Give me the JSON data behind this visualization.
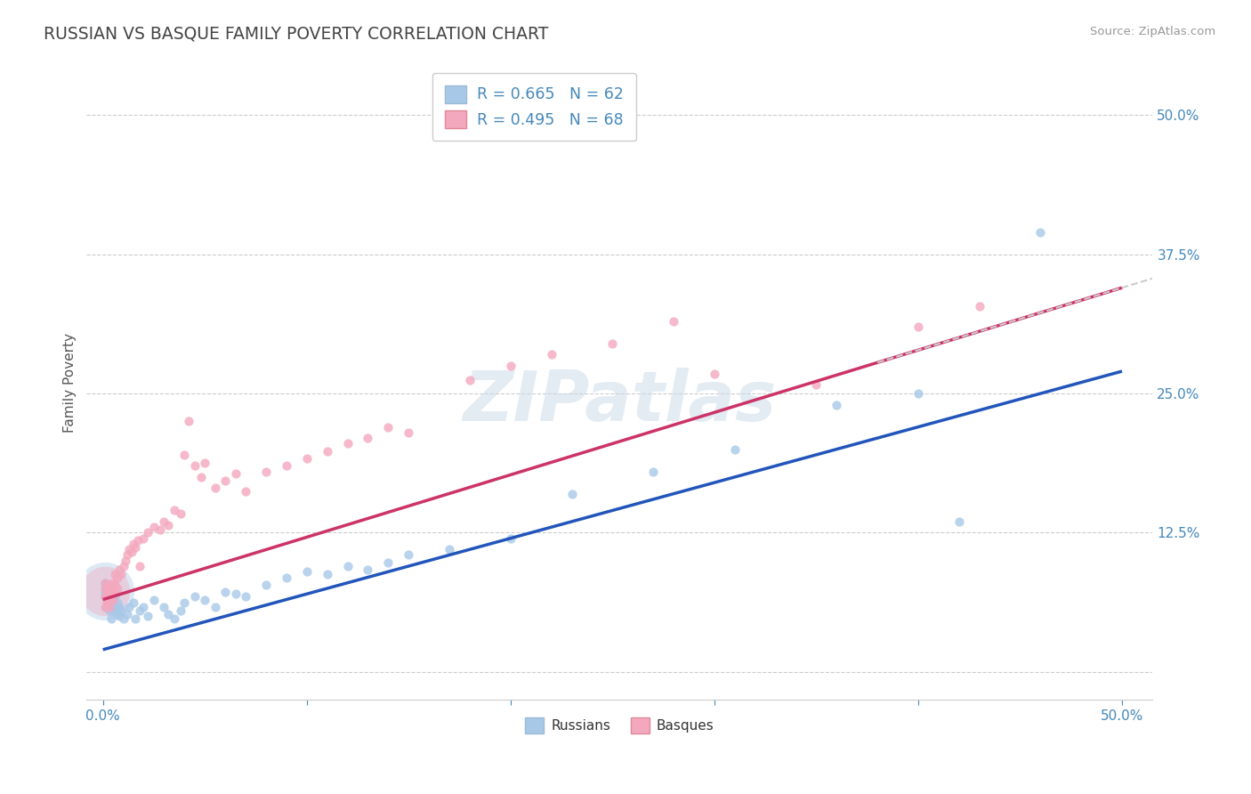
{
  "title": "RUSSIAN VS BASQUE FAMILY POVERTY CORRELATION CHART",
  "source": "Source: ZipAtlas.com",
  "ylabel": "Family Poverty",
  "russian_color": "#a8c8e8",
  "basque_color": "#f4a8be",
  "russian_line_color": "#2255bb",
  "basque_line_color": "#cc3366",
  "axis_label_color": "#4488bb",
  "title_color": "#444444",
  "grid_color": "#cccccc",
  "background_color": "#ffffff",
  "watermark": "ZIPatlas",
  "russian_R": 0.665,
  "russian_N": 62,
  "basque_R": 0.495,
  "basque_N": 68,
  "russian_line": [
    0.0,
    0.02,
    0.5,
    0.27
  ],
  "basque_line": [
    0.0,
    0.065,
    0.5,
    0.345
  ],
  "russian_points": [
    [
      0.001,
      0.068
    ],
    [
      0.001,
      0.075
    ],
    [
      0.001,
      0.08
    ],
    [
      0.001,
      0.072
    ],
    [
      0.002,
      0.065
    ],
    [
      0.002,
      0.078
    ],
    [
      0.002,
      0.07
    ],
    [
      0.002,
      0.058
    ],
    [
      0.003,
      0.068
    ],
    [
      0.003,
      0.062
    ],
    [
      0.003,
      0.055
    ],
    [
      0.003,
      0.075
    ],
    [
      0.004,
      0.06
    ],
    [
      0.004,
      0.07
    ],
    [
      0.004,
      0.048
    ],
    [
      0.005,
      0.058
    ],
    [
      0.005,
      0.065
    ],
    [
      0.005,
      0.072
    ],
    [
      0.006,
      0.055
    ],
    [
      0.006,
      0.068
    ],
    [
      0.007,
      0.052
    ],
    [
      0.007,
      0.062
    ],
    [
      0.008,
      0.05
    ],
    [
      0.008,
      0.058
    ],
    [
      0.009,
      0.055
    ],
    [
      0.01,
      0.048
    ],
    [
      0.012,
      0.052
    ],
    [
      0.013,
      0.058
    ],
    [
      0.015,
      0.062
    ],
    [
      0.016,
      0.048
    ],
    [
      0.018,
      0.055
    ],
    [
      0.02,
      0.058
    ],
    [
      0.022,
      0.05
    ],
    [
      0.025,
      0.065
    ],
    [
      0.03,
      0.058
    ],
    [
      0.032,
      0.052
    ],
    [
      0.035,
      0.048
    ],
    [
      0.038,
      0.055
    ],
    [
      0.04,
      0.062
    ],
    [
      0.045,
      0.068
    ],
    [
      0.05,
      0.065
    ],
    [
      0.055,
      0.058
    ],
    [
      0.06,
      0.072
    ],
    [
      0.065,
      0.07
    ],
    [
      0.07,
      0.068
    ],
    [
      0.08,
      0.078
    ],
    [
      0.09,
      0.085
    ],
    [
      0.1,
      0.09
    ],
    [
      0.11,
      0.088
    ],
    [
      0.12,
      0.095
    ],
    [
      0.13,
      0.092
    ],
    [
      0.14,
      0.098
    ],
    [
      0.15,
      0.105
    ],
    [
      0.17,
      0.11
    ],
    [
      0.2,
      0.12
    ],
    [
      0.23,
      0.16
    ],
    [
      0.27,
      0.18
    ],
    [
      0.31,
      0.2
    ],
    [
      0.36,
      0.24
    ],
    [
      0.4,
      0.25
    ],
    [
      0.42,
      0.135
    ],
    [
      0.46,
      0.395
    ]
  ],
  "basque_points": [
    [
      0.001,
      0.068
    ],
    [
      0.001,
      0.075
    ],
    [
      0.001,
      0.08
    ],
    [
      0.001,
      0.058
    ],
    [
      0.002,
      0.065
    ],
    [
      0.002,
      0.072
    ],
    [
      0.002,
      0.068
    ],
    [
      0.002,
      0.062
    ],
    [
      0.003,
      0.078
    ],
    [
      0.003,
      0.07
    ],
    [
      0.003,
      0.065
    ],
    [
      0.003,
      0.058
    ],
    [
      0.004,
      0.075
    ],
    [
      0.004,
      0.068
    ],
    [
      0.004,
      0.072
    ],
    [
      0.005,
      0.08
    ],
    [
      0.005,
      0.07
    ],
    [
      0.005,
      0.065
    ],
    [
      0.006,
      0.088
    ],
    [
      0.006,
      0.078
    ],
    [
      0.006,
      0.072
    ],
    [
      0.007,
      0.085
    ],
    [
      0.007,
      0.075
    ],
    [
      0.008,
      0.092
    ],
    [
      0.009,
      0.088
    ],
    [
      0.01,
      0.095
    ],
    [
      0.011,
      0.1
    ],
    [
      0.012,
      0.105
    ],
    [
      0.013,
      0.11
    ],
    [
      0.014,
      0.108
    ],
    [
      0.015,
      0.115
    ],
    [
      0.016,
      0.112
    ],
    [
      0.017,
      0.118
    ],
    [
      0.018,
      0.095
    ],
    [
      0.02,
      0.12
    ],
    [
      0.022,
      0.125
    ],
    [
      0.025,
      0.13
    ],
    [
      0.028,
      0.128
    ],
    [
      0.03,
      0.135
    ],
    [
      0.032,
      0.132
    ],
    [
      0.035,
      0.145
    ],
    [
      0.038,
      0.142
    ],
    [
      0.04,
      0.195
    ],
    [
      0.042,
      0.225
    ],
    [
      0.045,
      0.185
    ],
    [
      0.048,
      0.175
    ],
    [
      0.05,
      0.188
    ],
    [
      0.055,
      0.165
    ],
    [
      0.06,
      0.172
    ],
    [
      0.065,
      0.178
    ],
    [
      0.07,
      0.162
    ],
    [
      0.08,
      0.18
    ],
    [
      0.09,
      0.185
    ],
    [
      0.1,
      0.192
    ],
    [
      0.11,
      0.198
    ],
    [
      0.12,
      0.205
    ],
    [
      0.13,
      0.21
    ],
    [
      0.14,
      0.22
    ],
    [
      0.15,
      0.215
    ],
    [
      0.18,
      0.262
    ],
    [
      0.2,
      0.275
    ],
    [
      0.22,
      0.285
    ],
    [
      0.25,
      0.295
    ],
    [
      0.28,
      0.315
    ],
    [
      0.3,
      0.268
    ],
    [
      0.35,
      0.258
    ],
    [
      0.4,
      0.31
    ],
    [
      0.43,
      0.328
    ]
  ],
  "russian_large_x": [
    0.001
  ],
  "russian_large_y": [
    0.073
  ],
  "russian_large_s": 2200,
  "basque_large_x": [
    0.001
  ],
  "basque_large_y": [
    0.073
  ],
  "basque_large_s": 1600
}
